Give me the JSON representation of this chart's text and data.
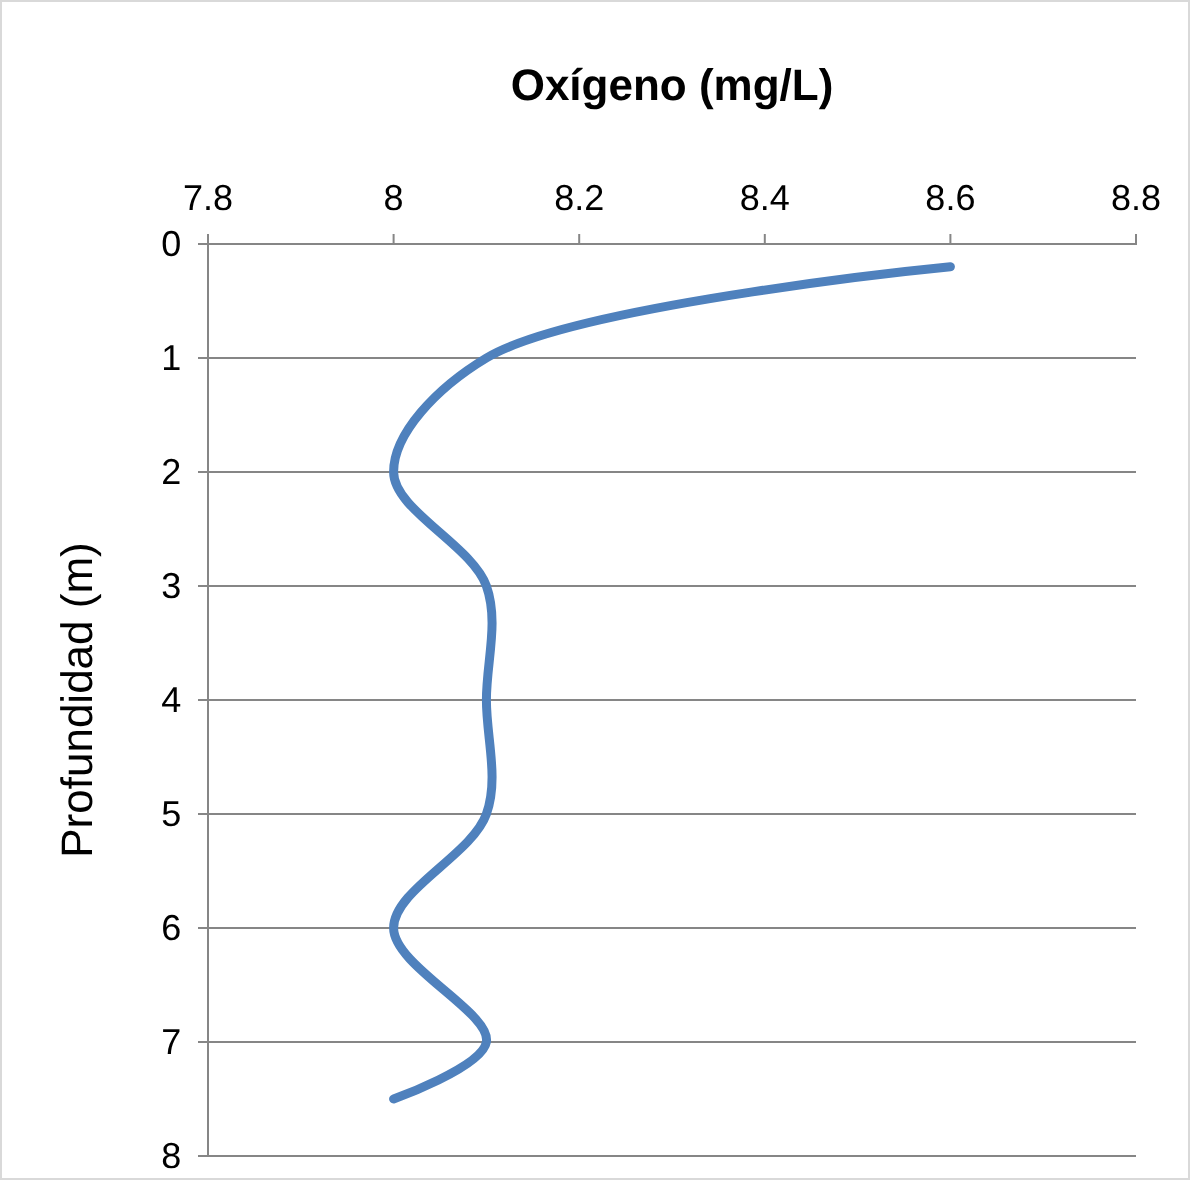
{
  "chart_data": {
    "type": "line",
    "xlabel": "Oxígeno (mg/L)",
    "ylabel": "Profundidad (m)",
    "xlim": [
      7.8,
      8.8
    ],
    "xticks": [
      7.8,
      8,
      8.2,
      8.4,
      8.6,
      8.8
    ],
    "ylim": [
      8,
      0
    ],
    "yticks": [
      0,
      1,
      2,
      3,
      4,
      5,
      6,
      7,
      8
    ],
    "grid": "y",
    "marker": "none",
    "line_style": "solid",
    "series": [
      {
        "color": "#4f81bd",
        "x": [
          8.6,
          8.1,
          8.0,
          8.1,
          8.1,
          8.1,
          8.0,
          8.1,
          8.0
        ],
        "values": [
          0.2,
          1,
          2,
          3,
          4,
          5,
          6,
          7,
          7.5
        ]
      }
    ]
  }
}
